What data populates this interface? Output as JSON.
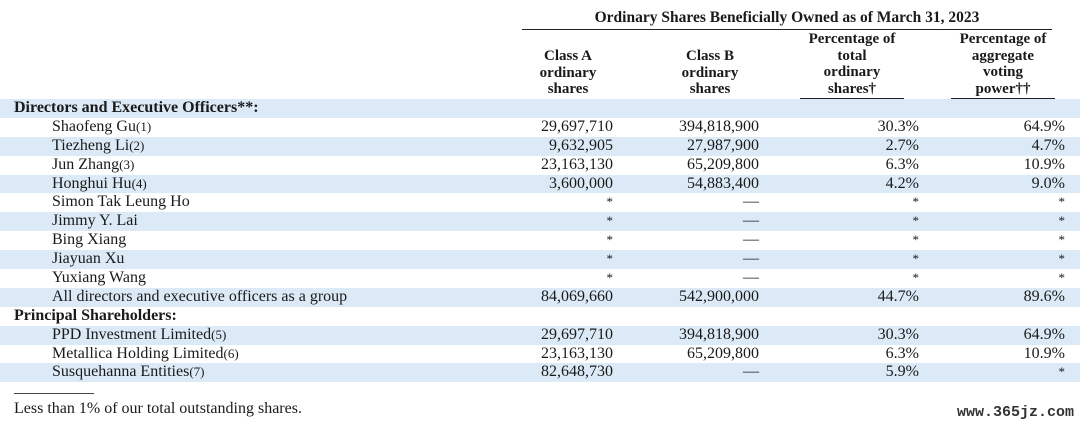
{
  "table": {
    "group_header": "Ordinary Shares Beneficially Owned as of March 31, 2023",
    "columns": [
      "Class A\nordinary\nshares",
      "Class B\nordinary\nshares",
      "Percentage of\ntotal\nordinary\nshares†",
      "Percentage of\naggregate\nvoting\npower††"
    ],
    "rows": [
      {
        "name": "Directors and Executive Officers**:",
        "section": true
      },
      {
        "name": "Shaofeng Gu",
        "note": "(1)",
        "class_a": "29,697,710",
        "class_b": "394,818,900",
        "pct_total": "30.3%",
        "pct_voting": "64.9%"
      },
      {
        "name": "Tiezheng Li",
        "note": "(2)",
        "class_a": "9,632,905",
        "class_b": "27,987,900",
        "pct_total": "2.7%",
        "pct_voting": "4.7%"
      },
      {
        "name": "Jun Zhang",
        "note": "(3)",
        "class_a": "23,163,130",
        "class_b": "65,209,800",
        "pct_total": "6.3%",
        "pct_voting": "10.9%"
      },
      {
        "name": "Honghui Hu",
        "note": "(4)",
        "class_a": "3,600,000",
        "class_b": "54,883,400",
        "pct_total": "4.2%",
        "pct_voting": "9.0%"
      },
      {
        "name": "Simon Tak Leung Ho",
        "note": "",
        "class_a": "*",
        "class_b": "—",
        "pct_total": "*",
        "pct_voting": "*"
      },
      {
        "name": "Jimmy Y. Lai",
        "note": "",
        "class_a": "*",
        "class_b": "—",
        "pct_total": "*",
        "pct_voting": "*"
      },
      {
        "name": "Bing Xiang",
        "note": "",
        "class_a": "*",
        "class_b": "—",
        "pct_total": "*",
        "pct_voting": "*"
      },
      {
        "name": "Jiayuan Xu",
        "note": "",
        "class_a": "*",
        "class_b": "—",
        "pct_total": "*",
        "pct_voting": "*"
      },
      {
        "name": "Yuxiang Wang",
        "note": "",
        "class_a": "*",
        "class_b": "—",
        "pct_total": "*",
        "pct_voting": "*"
      },
      {
        "name": "All directors and executive officers as a group",
        "note": "",
        "class_a": "84,069,660",
        "class_b": "542,900,000",
        "pct_total": "44.7%",
        "pct_voting": "89.6%"
      },
      {
        "name": "Principal Shareholders:",
        "section": true
      },
      {
        "name": "PPD Investment Limited",
        "note": "(5)",
        "class_a": "29,697,710",
        "class_b": "394,818,900",
        "pct_total": "30.3%",
        "pct_voting": "64.9%"
      },
      {
        "name": "Metallica Holding Limited",
        "note": "(6)",
        "class_a": "23,163,130",
        "class_b": "65,209,800",
        "pct_total": "6.3%",
        "pct_voting": "10.9%"
      },
      {
        "name": "Susquehanna Entities",
        "note": "(7)",
        "class_a": "82,648,730",
        "class_b": "—",
        "pct_total": "5.9%",
        "pct_voting": "*"
      }
    ]
  },
  "footnote": "Less than 1% of our total outstanding shares.",
  "watermark": "www.365jz.com",
  "colors": {
    "row_shade": "#dbeaf6",
    "text": "#1a1a1a"
  }
}
